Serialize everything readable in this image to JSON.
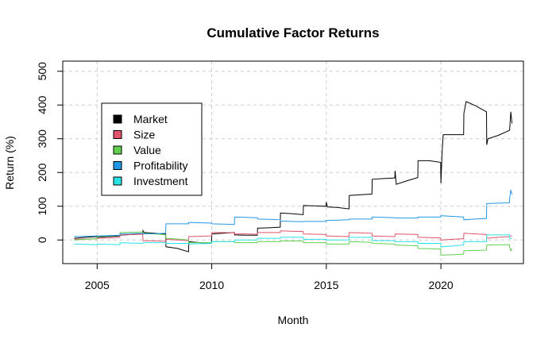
{
  "chart_data": {
    "type": "line",
    "title": "Cumulative Factor Returns",
    "xlabel": "Month",
    "ylabel": "Return (%)",
    "xlim": [
      2003.5,
      2023.6
    ],
    "ylim": [
      -70,
      530
    ],
    "x_ticks": [
      2005,
      2010,
      2015,
      2020
    ],
    "y_ticks": [
      0,
      100,
      200,
      300,
      400,
      500
    ],
    "grid": true,
    "legend_position": "top-left",
    "series": [
      {
        "name": "Market",
        "color": "#000000",
        "points": [
          [
            2004.0,
            5
          ],
          [
            2004.5,
            8
          ],
          [
            2004.99,
            10
          ],
          [
            2005.0,
            8
          ],
          [
            2005.5,
            10
          ],
          [
            2005.99,
            12
          ],
          [
            2006.0,
            14
          ],
          [
            2006.5,
            16
          ],
          [
            2006.99,
            18
          ],
          [
            2007.0,
            28
          ],
          [
            2007.05,
            22
          ],
          [
            2007.5,
            20
          ],
          [
            2007.99,
            18
          ],
          [
            2008.0,
            -20
          ],
          [
            2008.5,
            -25
          ],
          [
            2008.99,
            -35
          ],
          [
            2009.0,
            -5
          ],
          [
            2009.5,
            -8
          ],
          [
            2009.99,
            -10
          ],
          [
            2010.0,
            18
          ],
          [
            2010.5,
            20
          ],
          [
            2010.99,
            22
          ],
          [
            2011.0,
            15
          ],
          [
            2011.5,
            14
          ],
          [
            2011.99,
            14
          ],
          [
            2012.0,
            35
          ],
          [
            2012.5,
            36
          ],
          [
            2012.99,
            38
          ],
          [
            2013.0,
            80
          ],
          [
            2013.5,
            78
          ],
          [
            2013.99,
            75
          ],
          [
            2014.0,
            102
          ],
          [
            2014.5,
            101
          ],
          [
            2014.99,
            100
          ],
          [
            2015.0,
            112
          ],
          [
            2015.05,
            98
          ],
          [
            2015.5,
            96
          ],
          [
            2015.99,
            92
          ],
          [
            2016.0,
            132
          ],
          [
            2016.5,
            134
          ],
          [
            2016.99,
            136
          ],
          [
            2017.0,
            180
          ],
          [
            2017.5,
            182
          ],
          [
            2017.99,
            184
          ],
          [
            2018.0,
            205
          ],
          [
            2018.05,
            165
          ],
          [
            2018.5,
            175
          ],
          [
            2018.99,
            185
          ],
          [
            2019.0,
            235
          ],
          [
            2019.5,
            235
          ],
          [
            2019.99,
            230
          ],
          [
            2020.0,
            168
          ],
          [
            2020.05,
            260
          ],
          [
            2020.1,
            312
          ],
          [
            2020.5,
            312
          ],
          [
            2020.99,
            312
          ],
          [
            2021.0,
            375
          ],
          [
            2021.1,
            410
          ],
          [
            2021.5,
            398
          ],
          [
            2021.99,
            380
          ],
          [
            2022.0,
            282
          ],
          [
            2022.05,
            300
          ],
          [
            2022.5,
            310
          ],
          [
            2022.99,
            325
          ],
          [
            2023.0,
            330
          ],
          [
            2023.05,
            380
          ],
          [
            2023.1,
            345
          ]
        ]
      },
      {
        "name": "Size",
        "color": "#DF536B",
        "points": [
          [
            2004.0,
            2
          ],
          [
            2004.5,
            3
          ],
          [
            2004.99,
            4
          ],
          [
            2005.0,
            5
          ],
          [
            2005.5,
            6
          ],
          [
            2005.99,
            8
          ],
          [
            2006.0,
            15
          ],
          [
            2006.5,
            16
          ],
          [
            2006.99,
            17
          ],
          [
            2007.0,
            -2
          ],
          [
            2007.5,
            -3
          ],
          [
            2007.99,
            -4
          ],
          [
            2008.0,
            2
          ],
          [
            2008.5,
            0
          ],
          [
            2008.99,
            -2
          ],
          [
            2009.0,
            10
          ],
          [
            2009.5,
            11
          ],
          [
            2009.99,
            12
          ],
          [
            2010.0,
            22
          ],
          [
            2010.5,
            22
          ],
          [
            2010.99,
            21
          ],
          [
            2011.0,
            18
          ],
          [
            2011.5,
            18
          ],
          [
            2011.99,
            17
          ],
          [
            2012.0,
            22
          ],
          [
            2012.5,
            22
          ],
          [
            2012.99,
            22
          ],
          [
            2013.0,
            27
          ],
          [
            2013.5,
            26
          ],
          [
            2013.99,
            25
          ],
          [
            2014.0,
            18
          ],
          [
            2014.5,
            17
          ],
          [
            2014.99,
            16
          ],
          [
            2015.0,
            12
          ],
          [
            2015.5,
            11
          ],
          [
            2015.99,
            10
          ],
          [
            2016.0,
            22
          ],
          [
            2016.5,
            21
          ],
          [
            2016.99,
            20
          ],
          [
            2017.0,
            12
          ],
          [
            2017.5,
            11
          ],
          [
            2017.99,
            10
          ],
          [
            2018.0,
            18
          ],
          [
            2018.5,
            17
          ],
          [
            2018.99,
            16
          ],
          [
            2019.0,
            8
          ],
          [
            2019.5,
            7
          ],
          [
            2019.99,
            6
          ],
          [
            2020.0,
            0
          ],
          [
            2020.5,
            2
          ],
          [
            2020.99,
            4
          ],
          [
            2021.0,
            20
          ],
          [
            2021.5,
            18
          ],
          [
            2021.99,
            16
          ],
          [
            2022.0,
            5
          ],
          [
            2022.5,
            8
          ],
          [
            2022.99,
            10
          ],
          [
            2023.0,
            12
          ],
          [
            2023.1,
            12
          ]
        ]
      },
      {
        "name": "Value",
        "color": "#61D04F",
        "points": [
          [
            2004.0,
            0
          ],
          [
            2004.5,
            2
          ],
          [
            2004.99,
            4
          ],
          [
            2005.0,
            10
          ],
          [
            2005.5,
            12
          ],
          [
            2005.99,
            14
          ],
          [
            2006.0,
            22
          ],
          [
            2006.5,
            23
          ],
          [
            2006.99,
            24
          ],
          [
            2007.0,
            20
          ],
          [
            2007.5,
            18
          ],
          [
            2007.99,
            15
          ],
          [
            2008.0,
            5
          ],
          [
            2008.5,
            3
          ],
          [
            2008.99,
            0
          ],
          [
            2009.0,
            -8
          ],
          [
            2009.5,
            -8
          ],
          [
            2009.99,
            -8
          ],
          [
            2010.0,
            -5
          ],
          [
            2010.5,
            -5
          ],
          [
            2010.99,
            -5
          ],
          [
            2011.0,
            -8
          ],
          [
            2011.5,
            -8
          ],
          [
            2011.99,
            -8
          ],
          [
            2012.0,
            -5
          ],
          [
            2012.5,
            -5
          ],
          [
            2012.99,
            -5
          ],
          [
            2013.0,
            -3
          ],
          [
            2013.5,
            -3
          ],
          [
            2013.99,
            -3
          ],
          [
            2014.0,
            -8
          ],
          [
            2014.5,
            -8
          ],
          [
            2014.99,
            -8
          ],
          [
            2015.0,
            -12
          ],
          [
            2015.5,
            -12
          ],
          [
            2015.99,
            -12
          ],
          [
            2016.0,
            -5
          ],
          [
            2016.5,
            -6
          ],
          [
            2016.99,
            -7
          ],
          [
            2017.0,
            -10
          ],
          [
            2017.5,
            -11
          ],
          [
            2017.99,
            -12
          ],
          [
            2018.0,
            -15
          ],
          [
            2018.5,
            -16
          ],
          [
            2018.99,
            -17
          ],
          [
            2019.0,
            -25
          ],
          [
            2019.5,
            -26
          ],
          [
            2019.99,
            -27
          ],
          [
            2020.0,
            -45
          ],
          [
            2020.5,
            -44
          ],
          [
            2020.99,
            -42
          ],
          [
            2021.0,
            -32
          ],
          [
            2021.5,
            -31
          ],
          [
            2021.99,
            -30
          ],
          [
            2022.0,
            -15
          ],
          [
            2022.5,
            -14
          ],
          [
            2022.99,
            -14
          ],
          [
            2023.0,
            -22
          ],
          [
            2023.05,
            -32
          ],
          [
            2023.1,
            -25
          ]
        ]
      },
      {
        "name": "Profitability",
        "color": "#2297E6",
        "points": [
          [
            2004.0,
            10
          ],
          [
            2004.5,
            11
          ],
          [
            2004.99,
            12
          ],
          [
            2005.0,
            12
          ],
          [
            2005.5,
            13
          ],
          [
            2005.99,
            14
          ],
          [
            2006.0,
            18
          ],
          [
            2006.5,
            19
          ],
          [
            2006.99,
            20
          ],
          [
            2007.0,
            18
          ],
          [
            2007.5,
            19
          ],
          [
            2007.99,
            20
          ],
          [
            2008.0,
            48
          ],
          [
            2008.5,
            48
          ],
          [
            2008.99,
            48
          ],
          [
            2009.0,
            52
          ],
          [
            2009.5,
            51
          ],
          [
            2009.99,
            50
          ],
          [
            2010.0,
            48
          ],
          [
            2010.5,
            47
          ],
          [
            2010.99,
            46
          ],
          [
            2011.0,
            68
          ],
          [
            2011.5,
            67
          ],
          [
            2011.99,
            66
          ],
          [
            2012.0,
            62
          ],
          [
            2012.5,
            61
          ],
          [
            2012.99,
            60
          ],
          [
            2013.0,
            56
          ],
          [
            2013.5,
            55
          ],
          [
            2013.99,
            54
          ],
          [
            2014.0,
            55
          ],
          [
            2014.5,
            55
          ],
          [
            2014.99,
            55
          ],
          [
            2015.0,
            58
          ],
          [
            2015.5,
            59
          ],
          [
            2015.99,
            60
          ],
          [
            2016.0,
            62
          ],
          [
            2016.5,
            62
          ],
          [
            2016.99,
            62
          ],
          [
            2017.0,
            68
          ],
          [
            2017.5,
            67
          ],
          [
            2017.99,
            66
          ],
          [
            2018.0,
            65
          ],
          [
            2018.5,
            65
          ],
          [
            2018.99,
            65
          ],
          [
            2019.0,
            68
          ],
          [
            2019.5,
            68
          ],
          [
            2019.99,
            68
          ],
          [
            2020.0,
            72
          ],
          [
            2020.5,
            70
          ],
          [
            2020.99,
            68
          ],
          [
            2021.0,
            60
          ],
          [
            2021.5,
            62
          ],
          [
            2021.99,
            64
          ],
          [
            2022.0,
            108
          ],
          [
            2022.5,
            109
          ],
          [
            2022.99,
            110
          ],
          [
            2023.0,
            125
          ],
          [
            2023.05,
            148
          ],
          [
            2023.1,
            135
          ]
        ]
      },
      {
        "name": "Investment",
        "color": "#28E2E5",
        "points": [
          [
            2004.0,
            -12
          ],
          [
            2004.5,
            -13
          ],
          [
            2004.99,
            -14
          ],
          [
            2005.0,
            -12
          ],
          [
            2005.5,
            -13
          ],
          [
            2005.99,
            -14
          ],
          [
            2006.0,
            -8
          ],
          [
            2006.5,
            -9
          ],
          [
            2006.99,
            -10
          ],
          [
            2007.0,
            -8
          ],
          [
            2007.5,
            -8
          ],
          [
            2007.99,
            -8
          ],
          [
            2008.0,
            -10
          ],
          [
            2008.5,
            -10
          ],
          [
            2008.99,
            -10
          ],
          [
            2009.0,
            -12
          ],
          [
            2009.5,
            -11
          ],
          [
            2009.99,
            -10
          ],
          [
            2010.0,
            -5
          ],
          [
            2010.5,
            -5
          ],
          [
            2010.99,
            -5
          ],
          [
            2011.0,
            0
          ],
          [
            2011.5,
            0
          ],
          [
            2011.99,
            0
          ],
          [
            2012.0,
            5
          ],
          [
            2012.5,
            5
          ],
          [
            2012.99,
            5
          ],
          [
            2013.0,
            8
          ],
          [
            2013.5,
            8
          ],
          [
            2013.99,
            8
          ],
          [
            2014.0,
            2
          ],
          [
            2014.5,
            2
          ],
          [
            2014.99,
            2
          ],
          [
            2015.0,
            0
          ],
          [
            2015.5,
            0
          ],
          [
            2015.99,
            0
          ],
          [
            2016.0,
            8
          ],
          [
            2016.5,
            8
          ],
          [
            2016.99,
            8
          ],
          [
            2017.0,
            -2
          ],
          [
            2017.5,
            -2
          ],
          [
            2017.99,
            -2
          ],
          [
            2018.0,
            -5
          ],
          [
            2018.5,
            -5
          ],
          [
            2018.99,
            -5
          ],
          [
            2019.0,
            -10
          ],
          [
            2019.5,
            -10
          ],
          [
            2019.99,
            -10
          ],
          [
            2020.0,
            -20
          ],
          [
            2020.5,
            -18
          ],
          [
            2020.99,
            -15
          ],
          [
            2021.0,
            -5
          ],
          [
            2021.5,
            -5
          ],
          [
            2021.99,
            -5
          ],
          [
            2022.0,
            15
          ],
          [
            2022.5,
            15
          ],
          [
            2022.99,
            15
          ],
          [
            2023.0,
            5
          ],
          [
            2023.1,
            5
          ]
        ]
      }
    ]
  }
}
